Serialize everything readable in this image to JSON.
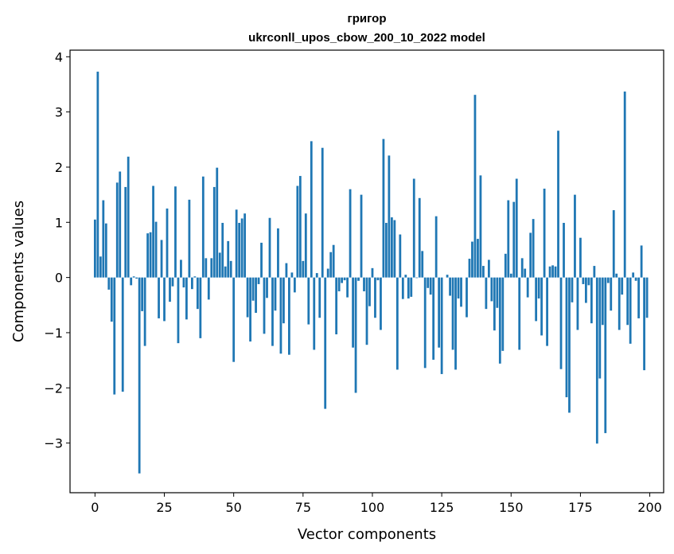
{
  "chart_data": {
    "type": "bar",
    "title": "григор",
    "subtitle": "ukrconll_upos_cbow_200_10_2022 model",
    "xlabel": "Vector components",
    "ylabel": "Components values",
    "xlim": [
      -9,
      205
    ],
    "ylim": [
      -3.9,
      4.12
    ],
    "xticks": [
      0,
      25,
      50,
      75,
      100,
      125,
      150,
      175,
      200
    ],
    "yticks": [
      -3,
      -2,
      -1,
      0,
      1,
      2,
      3,
      4
    ],
    "bar_color": "#1f77b4",
    "grid": false,
    "x": [
      0,
      1,
      2,
      3,
      4,
      5,
      6,
      7,
      8,
      9,
      10,
      11,
      12,
      13,
      14,
      15,
      16,
      17,
      18,
      19,
      20,
      21,
      22,
      23,
      24,
      25,
      26,
      27,
      28,
      29,
      30,
      31,
      32,
      33,
      34,
      35,
      36,
      37,
      38,
      39,
      40,
      41,
      42,
      43,
      44,
      45,
      46,
      47,
      48,
      49,
      50,
      51,
      52,
      53,
      54,
      55,
      56,
      57,
      58,
      59,
      60,
      61,
      62,
      63,
      64,
      65,
      66,
      67,
      68,
      69,
      70,
      71,
      72,
      73,
      74,
      75,
      76,
      77,
      78,
      79,
      80,
      81,
      82,
      83,
      84,
      85,
      86,
      87,
      88,
      89,
      90,
      91,
      92,
      93,
      94,
      95,
      96,
      97,
      98,
      99,
      100,
      101,
      102,
      103,
      104,
      105,
      106,
      107,
      108,
      109,
      110,
      111,
      112,
      113,
      114,
      115,
      116,
      117,
      118,
      119,
      120,
      121,
      122,
      123,
      124,
      125,
      126,
      127,
      128,
      129,
      130,
      131,
      132,
      133,
      134,
      135,
      136,
      137,
      138,
      139,
      140,
      141,
      142,
      143,
      144,
      145,
      146,
      147,
      148,
      149,
      150,
      151,
      152,
      153,
      154,
      155,
      156,
      157,
      158,
      159,
      160,
      161,
      162,
      163,
      164,
      165,
      166,
      167,
      168,
      169,
      170,
      171,
      172,
      173,
      174,
      175,
      176,
      177,
      178,
      179,
      180,
      181,
      182,
      183,
      184,
      185,
      186,
      187,
      188,
      189,
      190,
      191,
      192,
      193,
      194,
      195,
      196,
      197,
      198,
      199
    ],
    "values": [
      1.05,
      3.73,
      0.38,
      1.4,
      0.98,
      -0.22,
      -0.8,
      -2.12,
      1.72,
      1.92,
      -2.07,
      1.64,
      2.19,
      -0.14,
      0.02,
      -0.02,
      -3.55,
      -0.61,
      -1.24,
      0.8,
      0.82,
      1.66,
      1.01,
      -0.74,
      0.68,
      -0.79,
      1.25,
      -0.44,
      -0.16,
      1.65,
      -1.19,
      0.32,
      -0.18,
      -0.76,
      1.41,
      -0.21,
      0.02,
      -0.57,
      -1.1,
      1.83,
      0.35,
      -0.4,
      0.35,
      1.64,
      1.99,
      0.45,
      0.99,
      0.2,
      0.66,
      0.3,
      -1.53,
      1.23,
      0.99,
      1.07,
      1.16,
      -0.72,
      -1.16,
      -0.42,
      -0.64,
      -0.12,
      0.63,
      -1.02,
      -0.37,
      1.08,
      -1.24,
      -0.6,
      0.89,
      -1.38,
      -0.83,
      0.26,
      -1.4,
      0.09,
      -0.27,
      1.66,
      1.84,
      0.3,
      1.16,
      -0.85,
      2.47,
      -1.31,
      0.08,
      -0.73,
      2.35,
      -2.38,
      0.16,
      0.46,
      0.59,
      -1.03,
      -0.25,
      -0.1,
      -0.05,
      -0.36,
      1.6,
      -1.27,
      -2.09,
      -0.06,
      1.5,
      -0.25,
      -1.22,
      -0.52,
      0.17,
      -0.73,
      -0.05,
      -0.95,
      2.51,
      0.99,
      2.21,
      1.09,
      1.04,
      -1.67,
      0.78,
      -0.39,
      0.05,
      -0.38,
      -0.35,
      1.79,
      -0.01,
      1.44,
      0.48,
      -1.64,
      -0.19,
      -0.31,
      -1.49,
      1.11,
      -1.27,
      -1.75,
      0.0,
      0.05,
      -0.33,
      -1.31,
      -1.67,
      -0.38,
      -0.53,
      0.0,
      -0.72,
      0.34,
      0.65,
      3.31,
      0.7,
      1.85,
      0.21,
      -0.57,
      0.32,
      -0.43,
      -0.96,
      -0.55,
      -1.56,
      -1.33,
      0.43,
      1.4,
      0.07,
      1.37,
      1.79,
      -1.31,
      0.35,
      0.16,
      -0.36,
      0.81,
      1.06,
      -0.79,
      -0.38,
      -1.05,
      1.61,
      -1.24,
      0.2,
      0.22,
      0.2,
      2.66,
      -1.66,
      0.99,
      -2.17,
      -2.45,
      -0.45,
      1.5,
      -0.95,
      0.72,
      -0.12,
      -0.46,
      -0.14,
      -0.83,
      0.21,
      -3.01,
      -1.83,
      -0.86,
      -2.82,
      -0.1,
      -0.6,
      1.22,
      0.07,
      -0.95,
      -0.31,
      3.37,
      -0.86,
      -1.2,
      0.09,
      -0.06,
      -0.74,
      0.58,
      -1.68,
      -0.73
    ]
  }
}
